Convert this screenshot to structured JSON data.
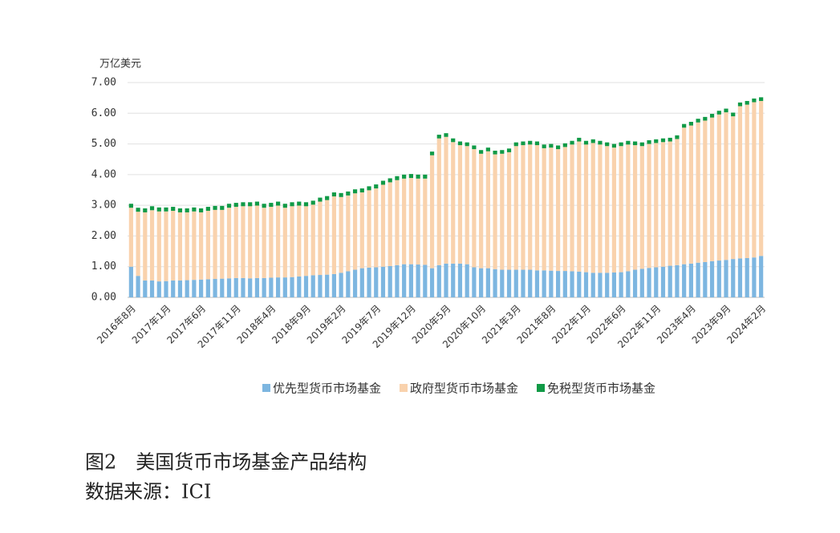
{
  "chart_data": {
    "type": "stacked_bar",
    "y_unit": "万亿美元",
    "caption": "图2　美国货币市场基金产品结构",
    "source": "数据来源：ICI",
    "categories": [
      "2016年8月",
      null,
      null,
      null,
      null,
      "2017年1月",
      null,
      null,
      null,
      null,
      "2017年6月",
      null,
      null,
      null,
      null,
      "2017年11月",
      null,
      null,
      null,
      null,
      "2018年4月",
      null,
      null,
      null,
      null,
      "2018年9月",
      null,
      null,
      null,
      null,
      "2019年2月",
      null,
      null,
      null,
      null,
      "2019年7月",
      null,
      null,
      null,
      null,
      "2019年12月",
      null,
      null,
      null,
      null,
      "2020年5月",
      null,
      null,
      null,
      null,
      "2020年10月",
      null,
      null,
      null,
      null,
      "2021年3月",
      null,
      null,
      null,
      null,
      "2021年8月",
      null,
      null,
      null,
      null,
      "2022年1月",
      null,
      null,
      null,
      null,
      "2022年6月",
      null,
      null,
      null,
      null,
      "2022年11月",
      null,
      null,
      null,
      null,
      "2023年4月",
      null,
      null,
      null,
      null,
      "2023年9月",
      null,
      null,
      null,
      null,
      "2024年2月"
    ],
    "series": [
      {
        "name": "优先型货币市场基金",
        "color": "#7db6e0",
        "values": [
          1.0,
          0.7,
          0.55,
          0.55,
          0.52,
          0.53,
          0.55,
          0.55,
          0.56,
          0.57,
          0.58,
          0.59,
          0.6,
          0.61,
          0.62,
          0.63,
          0.63,
          0.62,
          0.63,
          0.63,
          0.64,
          0.65,
          0.65,
          0.66,
          0.68,
          0.7,
          0.72,
          0.73,
          0.74,
          0.76,
          0.8,
          0.85,
          0.9,
          0.95,
          0.97,
          0.98,
          1.0,
          1.02,
          1.05,
          1.08,
          1.08,
          1.07,
          1.06,
          0.95,
          1.05,
          1.1,
          1.1,
          1.1,
          1.08,
          0.98,
          0.95,
          0.95,
          0.92,
          0.9,
          0.9,
          0.9,
          0.9,
          0.9,
          0.88,
          0.88,
          0.87,
          0.86,
          0.86,
          0.85,
          0.84,
          0.82,
          0.8,
          0.8,
          0.8,
          0.81,
          0.82,
          0.85,
          0.9,
          0.93,
          0.96,
          0.98,
          1.0,
          1.03,
          1.05,
          1.08,
          1.1,
          1.13,
          1.15,
          1.18,
          1.2,
          1.22,
          1.25,
          1.27,
          1.28,
          1.3,
          1.35
        ]
      },
      {
        "name": "政府型货币市场基金",
        "color": "#f9d2ad",
        "values": [
          1.92,
          2.09,
          2.22,
          2.29,
          2.28,
          2.27,
          2.27,
          2.22,
          2.21,
          2.23,
          2.19,
          2.23,
          2.25,
          2.24,
          2.3,
          2.32,
          2.34,
          2.35,
          2.36,
          2.29,
          2.31,
          2.34,
          2.27,
          2.31,
          2.31,
          2.27,
          2.3,
          2.39,
          2.43,
          2.53,
          2.47,
          2.47,
          2.49,
          2.47,
          2.52,
          2.57,
          2.67,
          2.73,
          2.77,
          2.79,
          2.81,
          2.8,
          2.81,
          3.68,
          4.13,
          4.13,
          3.96,
          3.86,
          3.85,
          3.85,
          3.73,
          3.81,
          3.74,
          3.78,
          3.83,
          4.03,
          4.06,
          4.08,
          4.08,
          3.98,
          4.01,
          3.97,
          4.04,
          4.13,
          4.24,
          4.16,
          4.23,
          4.18,
          4.13,
          4.07,
          4.11,
          4.13,
          4.06,
          4.0,
          4.04,
          4.05,
          4.06,
          4.05,
          4.11,
          4.45,
          4.5,
          4.57,
          4.61,
          4.68,
          4.76,
          4.81,
          4.65,
          4.96,
          5.0,
          5.06,
          5.05
        ]
      },
      {
        "name": "免税型货币市场基金",
        "color": "#109a46",
        "values": [
          0.13,
          0.13,
          0.13,
          0.13,
          0.13,
          0.13,
          0.13,
          0.13,
          0.13,
          0.13,
          0.13,
          0.13,
          0.13,
          0.13,
          0.13,
          0.13,
          0.13,
          0.13,
          0.13,
          0.13,
          0.13,
          0.13,
          0.13,
          0.13,
          0.13,
          0.13,
          0.13,
          0.13,
          0.13,
          0.13,
          0.13,
          0.13,
          0.13,
          0.13,
          0.13,
          0.13,
          0.13,
          0.13,
          0.13,
          0.13,
          0.13,
          0.13,
          0.13,
          0.12,
          0.12,
          0.12,
          0.12,
          0.12,
          0.12,
          0.12,
          0.12,
          0.12,
          0.12,
          0.12,
          0.12,
          0.12,
          0.12,
          0.12,
          0.12,
          0.12,
          0.12,
          0.12,
          0.12,
          0.12,
          0.12,
          0.12,
          0.12,
          0.12,
          0.12,
          0.12,
          0.12,
          0.12,
          0.12,
          0.12,
          0.12,
          0.12,
          0.12,
          0.12,
          0.12,
          0.12,
          0.12,
          0.12,
          0.12,
          0.12,
          0.12,
          0.12,
          0.12,
          0.12,
          0.12,
          0.12,
          0.12
        ]
      }
    ],
    "ylim": [
      0,
      7
    ],
    "yticks": [
      {
        "value": 0,
        "label": "0.00"
      },
      {
        "value": 1,
        "label": "1.00"
      },
      {
        "value": 2,
        "label": "2.00"
      },
      {
        "value": 3,
        "label": "3.00"
      },
      {
        "value": 4,
        "label": "4.00"
      },
      {
        "value": 5,
        "label": "5.00"
      },
      {
        "value": 6,
        "label": "6.00"
      },
      {
        "value": 7,
        "label": "7.00"
      }
    ],
    "grid": true,
    "legend": "bottom"
  }
}
